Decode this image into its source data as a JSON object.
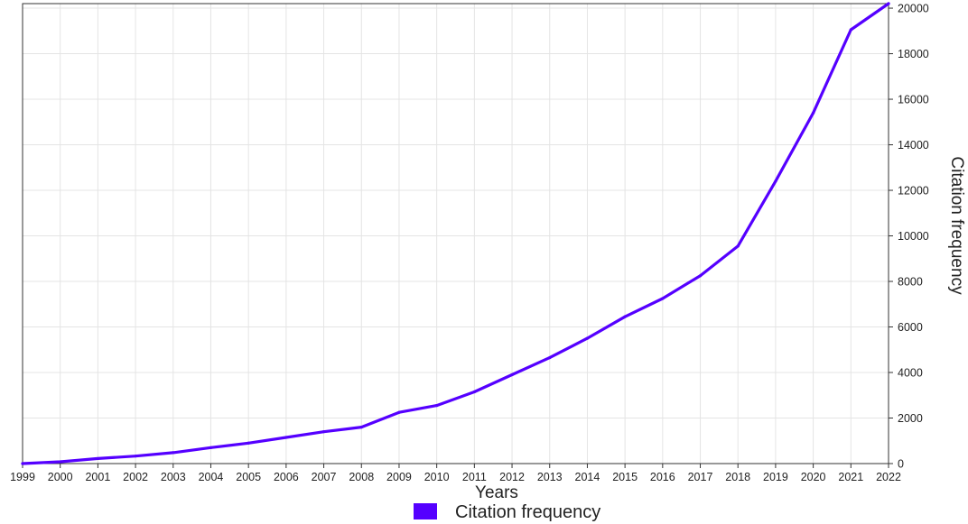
{
  "chart_data": {
    "type": "line",
    "title": "",
    "xlabel": "Years",
    "ylabel": "Citation frequency",
    "y_axis_side": "right",
    "grid": true,
    "legend_position": "bottom-center",
    "x": [
      "1999",
      "2000",
      "2001",
      "2002",
      "2003",
      "2004",
      "2005",
      "2006",
      "2007",
      "2008",
      "2009",
      "2010",
      "2011",
      "2012",
      "2013",
      "2014",
      "2015",
      "2016",
      "2017",
      "2018",
      "2019",
      "2020",
      "2021",
      "2022"
    ],
    "xlim": [
      "1999",
      "2022"
    ],
    "yticks": [
      0,
      2000,
      4000,
      6000,
      8000,
      10000,
      12000,
      14000,
      16000,
      18000,
      20000
    ],
    "ylim": [
      0,
      20200
    ],
    "series": [
      {
        "name": "Citation frequency",
        "color": "#5500ff",
        "values": [
          0,
          80,
          220,
          330,
          480,
          700,
          900,
          1150,
          1400,
          1600,
          2250,
          2550,
          3150,
          3900,
          4650,
          5500,
          6450,
          7250,
          8250,
          9550,
          12400,
          15400,
          19050,
          20200
        ]
      }
    ]
  },
  "colors": {
    "series": "#5500ff",
    "grid": "#e4e4e4",
    "axis": "#333333"
  }
}
